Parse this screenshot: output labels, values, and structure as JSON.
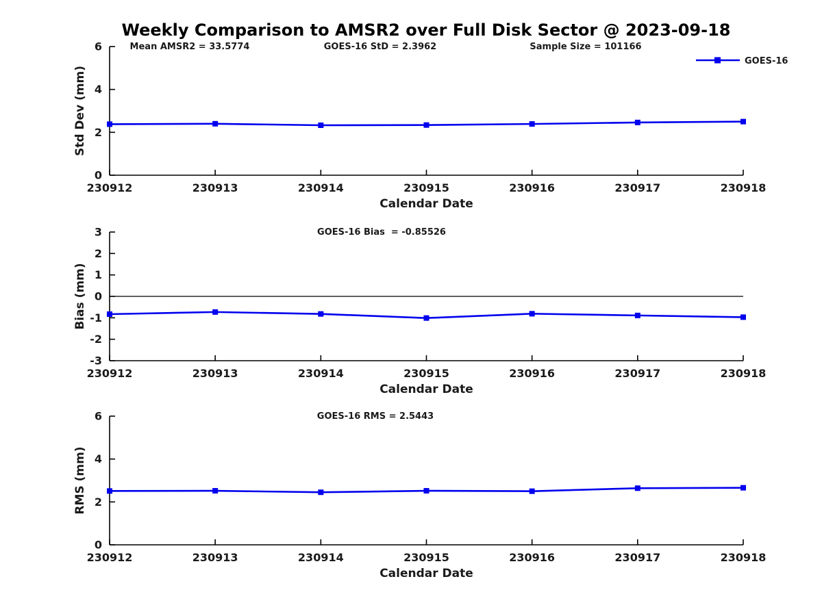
{
  "title": "Weekly Comparison to AMSR2 over Full Disk Sector @ 2023-09-18",
  "legend": {
    "label": "GOES-16",
    "position": "top-right"
  },
  "colors": {
    "line": "#0000EE",
    "marker": "#0000EE",
    "axis": "#000000",
    "text": "#1a1a1a",
    "background": "#ffffff"
  },
  "stats": {
    "mean_amsr2": 33.5774,
    "goes16_std": 2.3962,
    "sample_size": 101166,
    "goes16_bias": -0.85526,
    "goes16_rms": 2.5443
  },
  "chart_data": [
    {
      "type": "line",
      "title": "",
      "categories": [
        "230912",
        "230913",
        "230914",
        "230915",
        "230916",
        "230917",
        "230918"
      ],
      "series": [
        {
          "name": "GOES-16",
          "values": [
            2.38,
            2.4,
            2.33,
            2.34,
            2.39,
            2.46,
            2.5
          ]
        }
      ],
      "xlabel": "Calendar Date",
      "ylabel": "Std Dev (mm)",
      "ylim": [
        0,
        6
      ],
      "yticks": [
        0,
        2,
        4,
        6
      ],
      "grid": false,
      "zero_line": false,
      "show_legend": true,
      "legend_position": "top-right",
      "annotations": [
        "Mean AMSR2 = 33.5774",
        "GOES-16 StD = 2.3962",
        "Sample Size = 101166"
      ],
      "marker": "square"
    },
    {
      "type": "line",
      "title": "",
      "categories": [
        "230912",
        "230913",
        "230914",
        "230915",
        "230916",
        "230917",
        "230918"
      ],
      "series": [
        {
          "name": "GOES-16",
          "values": [
            -0.83,
            -0.73,
            -0.82,
            -1.01,
            -0.81,
            -0.89,
            -0.97
          ]
        }
      ],
      "xlabel": "Calendar Date",
      "ylabel": "Bias (mm)",
      "ylim": [
        -3,
        3
      ],
      "yticks": [
        -3,
        -2,
        -1,
        0,
        1,
        2,
        3
      ],
      "grid": false,
      "zero_line": true,
      "show_legend": false,
      "annotations": [
        "GOES-16 Bias  = -0.85526"
      ],
      "marker": "square"
    },
    {
      "type": "line",
      "title": "",
      "categories": [
        "230912",
        "230913",
        "230914",
        "230915",
        "230916",
        "230917",
        "230918"
      ],
      "series": [
        {
          "name": "GOES-16",
          "values": [
            2.51,
            2.52,
            2.45,
            2.52,
            2.5,
            2.64,
            2.66
          ]
        }
      ],
      "xlabel": "Calendar Date",
      "ylabel": "RMS (mm)",
      "ylim": [
        0,
        6
      ],
      "yticks": [
        0,
        2,
        4,
        6
      ],
      "grid": false,
      "zero_line": false,
      "show_legend": false,
      "annotations": [
        "GOES-16 RMS = 2.5443"
      ],
      "marker": "square"
    }
  ]
}
